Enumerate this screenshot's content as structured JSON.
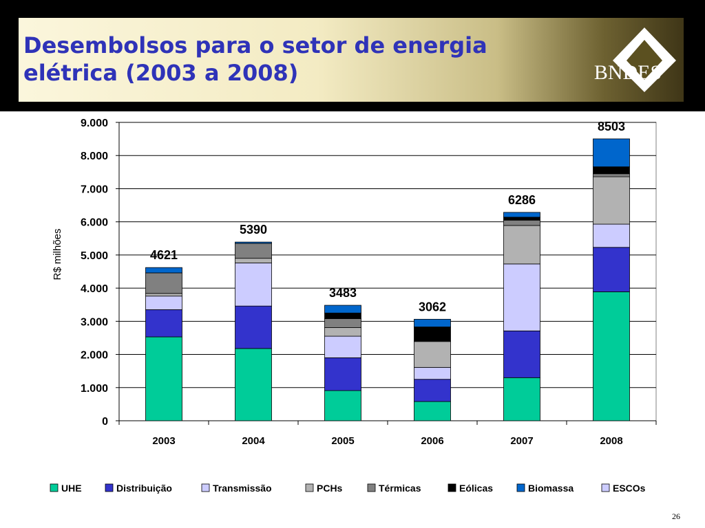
{
  "slide": {
    "title_line1": "Desembolsos para o setor de energia",
    "title_line2": "elétrica (2003 a 2008)",
    "logo_text": "BNDES",
    "page_number": "26"
  },
  "colors": {
    "UHE": "#00cc99",
    "Distribuição": "#3333cc",
    "Transmissão": "#ccccff",
    "PCHs": "#b2b2b2",
    "Térmicas": "#808080",
    "Eólicas": "#000000",
    "Biomassa": "#0066cc",
    "ESCOs": "#ccccff",
    "title": "#2f33b8"
  },
  "chart_data": {
    "type": "bar",
    "stacked": true,
    "title": "",
    "xlabel": "",
    "ylabel": "R$ milhões",
    "ylim": [
      0,
      9000
    ],
    "yticks": [
      "0",
      "1.000",
      "2.000",
      "3.000",
      "4.000",
      "5.000",
      "6.000",
      "7.000",
      "8.000",
      "9.000"
    ],
    "grid": "horizontal",
    "legend_position": "bottom",
    "categories": [
      "2003",
      "2004",
      "2005",
      "2006",
      "2007",
      "2008"
    ],
    "totals": [
      4621,
      5390,
      3483,
      3062,
      6286,
      8503
    ],
    "total_labels": [
      "4621",
      "5390",
      "3483",
      "3062",
      "6286",
      "8503"
    ],
    "series": [
      {
        "name": "UHE",
        "values": [
          2530,
          2180,
          910,
          580,
          1300,
          3890
        ]
      },
      {
        "name": "Distribuição",
        "values": [
          820,
          1280,
          990,
          670,
          1410,
          1340
        ]
      },
      {
        "name": "Transmissão",
        "values": [
          410,
          1300,
          650,
          360,
          2020,
          700
        ]
      },
      {
        "name": "PCHs",
        "values": [
          80,
          140,
          260,
          780,
          1160,
          1430
        ]
      },
      {
        "name": "Térmicas",
        "values": [
          620,
          450,
          270,
          20,
          160,
          90
        ]
      },
      {
        "name": "Eólicas",
        "values": [
          0,
          0,
          170,
          420,
          90,
          210
        ]
      },
      {
        "name": "Biomassa",
        "values": [
          161,
          40,
          233,
          232,
          146,
          843
        ]
      },
      {
        "name": "ESCOs",
        "values": [
          0,
          0,
          0,
          0,
          0,
          0
        ]
      }
    ]
  }
}
